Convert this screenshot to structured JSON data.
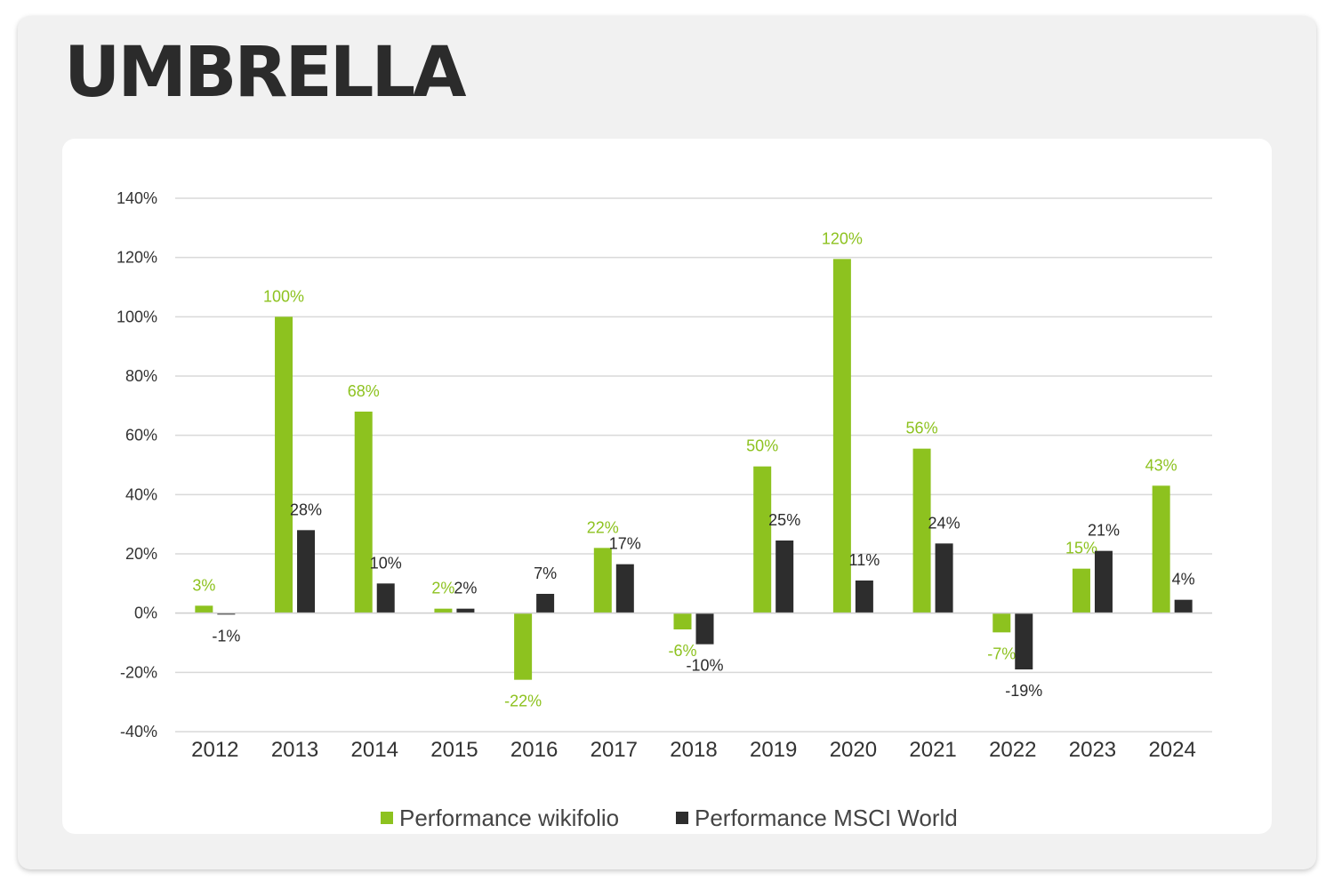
{
  "page_title": "UMBRELLA",
  "chart_data": {
    "type": "bar",
    "title": "",
    "xlabel": "",
    "ylabel": "",
    "ylim": [
      -40,
      140
    ],
    "ytick_step": 20,
    "y_unit": "%",
    "grid": true,
    "legend_position": "bottom",
    "categories": [
      "2012",
      "2013",
      "2014",
      "2015",
      "2016",
      "2017",
      "2018",
      "2019",
      "2020",
      "2021",
      "2022",
      "2023",
      "2024"
    ],
    "series": [
      {
        "name": "Performance wikifolio",
        "color": "#8dc21f",
        "values": [
          2.5,
          100,
          68,
          1.5,
          -22.5,
          22,
          -5.5,
          49.5,
          119.5,
          55.5,
          -6.5,
          15,
          43
        ],
        "labels": [
          "3%",
          "100%",
          "68%",
          "2%",
          "-22%",
          "22%",
          "-6%",
          "50%",
          "120%",
          "56%",
          "-7%",
          "15%",
          "43%"
        ]
      },
      {
        "name": "Performance MSCI World",
        "color": "#2d2d2d",
        "values": [
          -0.5,
          28,
          10,
          1.5,
          6.5,
          16.5,
          -10.5,
          24.5,
          11,
          23.5,
          -19,
          21,
          4.5
        ],
        "labels": [
          "-1%",
          "28%",
          "10%",
          "2%",
          "7%",
          "17%",
          "-10%",
          "25%",
          "11%",
          "24%",
          "-19%",
          "21%",
          "4%"
        ]
      }
    ]
  }
}
